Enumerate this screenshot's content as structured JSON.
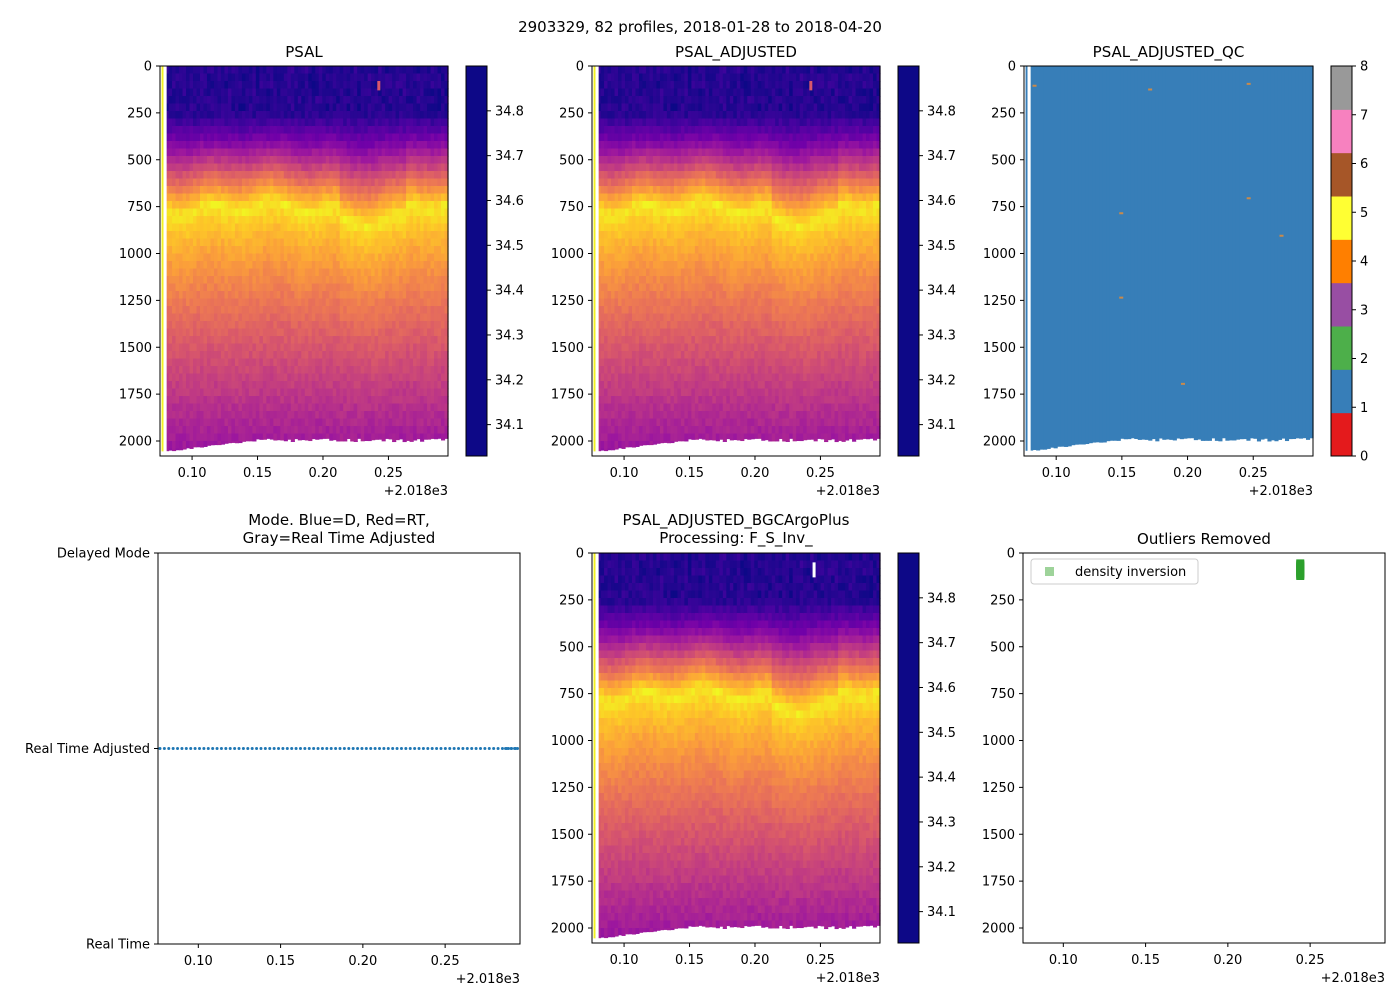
{
  "suptitle": "2903329, 82 profiles, 2018-01-28 to 2018-04-20",
  "colors": {
    "plasma": [
      "#0d0887",
      "#46039f",
      "#7201a8",
      "#9c179e",
      "#bd3786",
      "#d8576b",
      "#ed7953",
      "#fb9f3a",
      "#fdca26",
      "#f0f921"
    ],
    "qc": [
      "#e41a1c",
      "#377eb8",
      "#4daf4a",
      "#984ea3",
      "#ff7f00",
      "#ffff33",
      "#a65628",
      "#f781bf",
      "#999999"
    ],
    "mode_points": "#1f77b4",
    "outlier": "#2ca02c"
  },
  "shared_x_axis": {
    "ticks": [
      "0.10",
      "0.15",
      "0.20",
      "0.25"
    ],
    "tick_values": [
      0.1,
      0.15,
      0.2,
      0.25
    ],
    "offset_label": "+2.018e3",
    "xlim": [
      0.0755,
      0.2955
    ]
  },
  "chart_data": [
    {
      "id": "psal",
      "type": "heatmap",
      "title": "PSAL",
      "yticks": [
        "0",
        "250",
        "500",
        "750",
        "1000",
        "1250",
        "1500",
        "1750",
        "2000"
      ],
      "ylim": [
        2080,
        0
      ],
      "colorbar": {
        "ticks": [
          "34.1",
          "34.2",
          "34.3",
          "34.4",
          "34.5",
          "34.6",
          "34.7",
          "34.8"
        ],
        "range": [
          34.03,
          34.9
        ]
      },
      "profile_count": 82,
      "max_depth_approx": 2000,
      "time_range": [
        0.0767,
        0.2955
      ]
    },
    {
      "id": "psal_adjusted",
      "type": "heatmap",
      "title": "PSAL_ADJUSTED",
      "yticks": [
        "0",
        "250",
        "500",
        "750",
        "1000",
        "1250",
        "1500",
        "1750",
        "2000"
      ],
      "ylim": [
        2080,
        0
      ],
      "colorbar": {
        "ticks": [
          "34.1",
          "34.2",
          "34.3",
          "34.4",
          "34.5",
          "34.6",
          "34.7",
          "34.8"
        ],
        "range": [
          34.03,
          34.9
        ]
      },
      "profile_count": 82,
      "max_depth_approx": 2000
    },
    {
      "id": "psal_adjusted_qc",
      "type": "heatmap",
      "title": "PSAL_ADJUSTED_QC",
      "yticks": [
        "0",
        "250",
        "500",
        "750",
        "1000",
        "1250",
        "1500",
        "1750",
        "2000"
      ],
      "ylim": [
        2080,
        0
      ],
      "colorbar": {
        "ticks": [
          "0",
          "1",
          "2",
          "3",
          "4",
          "5",
          "6",
          "7",
          "8"
        ],
        "range": [
          0,
          8
        ]
      },
      "dominant_flag": 1,
      "flag_4_spots": [
        {
          "x": 0.082,
          "depth": 100
        },
        {
          "x": 0.17,
          "depth": 120
        },
        {
          "x": 0.245,
          "depth": 90
        },
        {
          "x": 0.148,
          "depth": 780
        },
        {
          "x": 0.245,
          "depth": 700
        },
        {
          "x": 0.148,
          "depth": 1230
        },
        {
          "x": 0.195,
          "depth": 1690
        },
        {
          "x": 0.27,
          "depth": 900
        }
      ]
    },
    {
      "id": "mode",
      "type": "scatter",
      "title": "Mode. Blue=D, Red=RT,",
      "title_line2": "Gray=Real Time Adjusted",
      "yticks": [
        "Real Time",
        "Real Time Adjusted",
        "Delayed Mode"
      ],
      "ytick_values": [
        0,
        1,
        2
      ],
      "ylim": [
        0,
        2
      ],
      "series": [
        {
          "name": "Real Time Adjusted",
          "y": 1,
          "count": 82
        }
      ]
    },
    {
      "id": "psal_bgc",
      "type": "heatmap",
      "title": "PSAL_ADJUSTED_BGCArgoPlus",
      "title_line2": "Processing: F_S_Inv_",
      "yticks": [
        "0",
        "250",
        "500",
        "750",
        "1000",
        "1250",
        "1500",
        "1750",
        "2000"
      ],
      "ylim": [
        2080,
        0
      ],
      "colorbar": {
        "ticks": [
          "34.1",
          "34.2",
          "34.3",
          "34.4",
          "34.5",
          "34.6",
          "34.7",
          "34.8"
        ],
        "range": [
          34.03,
          34.9
        ]
      },
      "removed_profile_x": 0.244,
      "removed_depth_range": [
        50,
        130
      ]
    },
    {
      "id": "outliers",
      "type": "scatter",
      "title": "Outliers Removed",
      "yticks": [
        "0",
        "250",
        "500",
        "750",
        "1000",
        "1250",
        "1500",
        "1750",
        "2000"
      ],
      "ylim": [
        2080,
        0
      ],
      "legend": {
        "label": "density inversion",
        "position": "upper-left"
      },
      "series": [
        {
          "name": "density inversion",
          "x": 0.244,
          "depth_range": [
            50,
            130
          ]
        }
      ]
    }
  ]
}
